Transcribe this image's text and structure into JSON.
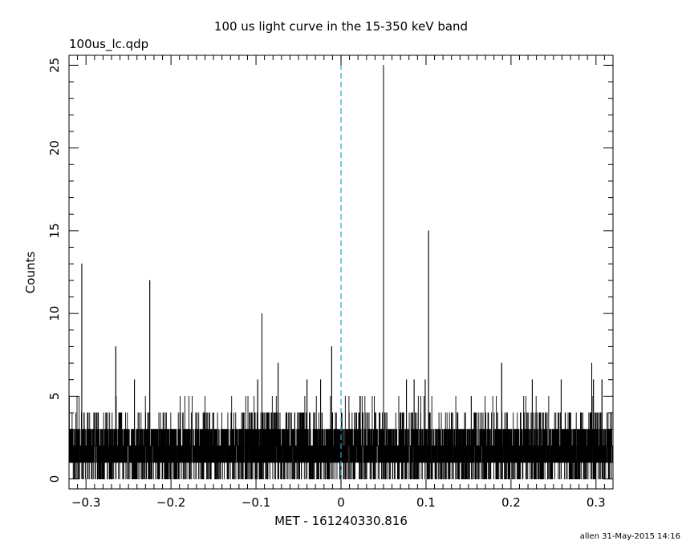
{
  "chart_data": {
    "type": "bar",
    "title": "100 us light curve in the 15-350 keV band",
    "file_label": "100us_lc.qdp",
    "xlabel": "MET - 161240330.816",
    "ylabel": "Counts",
    "footer": "allen 31-May-2015 14:16",
    "xlim": [
      -0.32,
      0.32
    ],
    "ylim": [
      -0.6,
      25.6
    ],
    "x_ticks": [
      -0.3,
      -0.2,
      -0.1,
      0,
      0.1,
      0.2,
      0.3
    ],
    "x_tick_labels": [
      "−0.3",
      "−0.2",
      "−0.1",
      "0",
      "0.1",
      "0.2",
      "0.3"
    ],
    "y_ticks": [
      0,
      5,
      10,
      15,
      20,
      25
    ],
    "y_tick_labels": [
      "0",
      "5",
      "10",
      "15",
      "20",
      "25"
    ],
    "bin_width": 0.0001,
    "marker_line": {
      "x": 0,
      "style": "dashed",
      "color": "#2aa4c8"
    },
    "background_level": 2,
    "spikes": [
      {
        "x": -0.305,
        "y": 13
      },
      {
        "x": -0.265,
        "y": 8
      },
      {
        "x": -0.243,
        "y": 6
      },
      {
        "x": -0.225,
        "y": 12
      },
      {
        "x": -0.093,
        "y": 10
      },
      {
        "x": -0.074,
        "y": 7
      },
      {
        "x": -0.011,
        "y": 8
      },
      {
        "x": 0.05,
        "y": 25
      },
      {
        "x": 0.103,
        "y": 15
      },
      {
        "x": 0.189,
        "y": 7
      },
      {
        "x": 0.295,
        "y": 7
      },
      {
        "x": -0.098,
        "y": 6
      },
      {
        "x": -0.04,
        "y": 6
      },
      {
        "x": -0.024,
        "y": 6
      },
      {
        "x": 0.077,
        "y": 6
      },
      {
        "x": 0.086,
        "y": 6
      },
      {
        "x": 0.099,
        "y": 6
      },
      {
        "x": 0.225,
        "y": 6
      },
      {
        "x": 0.259,
        "y": 6
      },
      {
        "x": 0.297,
        "y": 6
      },
      {
        "x": 0.307,
        "y": 6
      }
    ]
  }
}
